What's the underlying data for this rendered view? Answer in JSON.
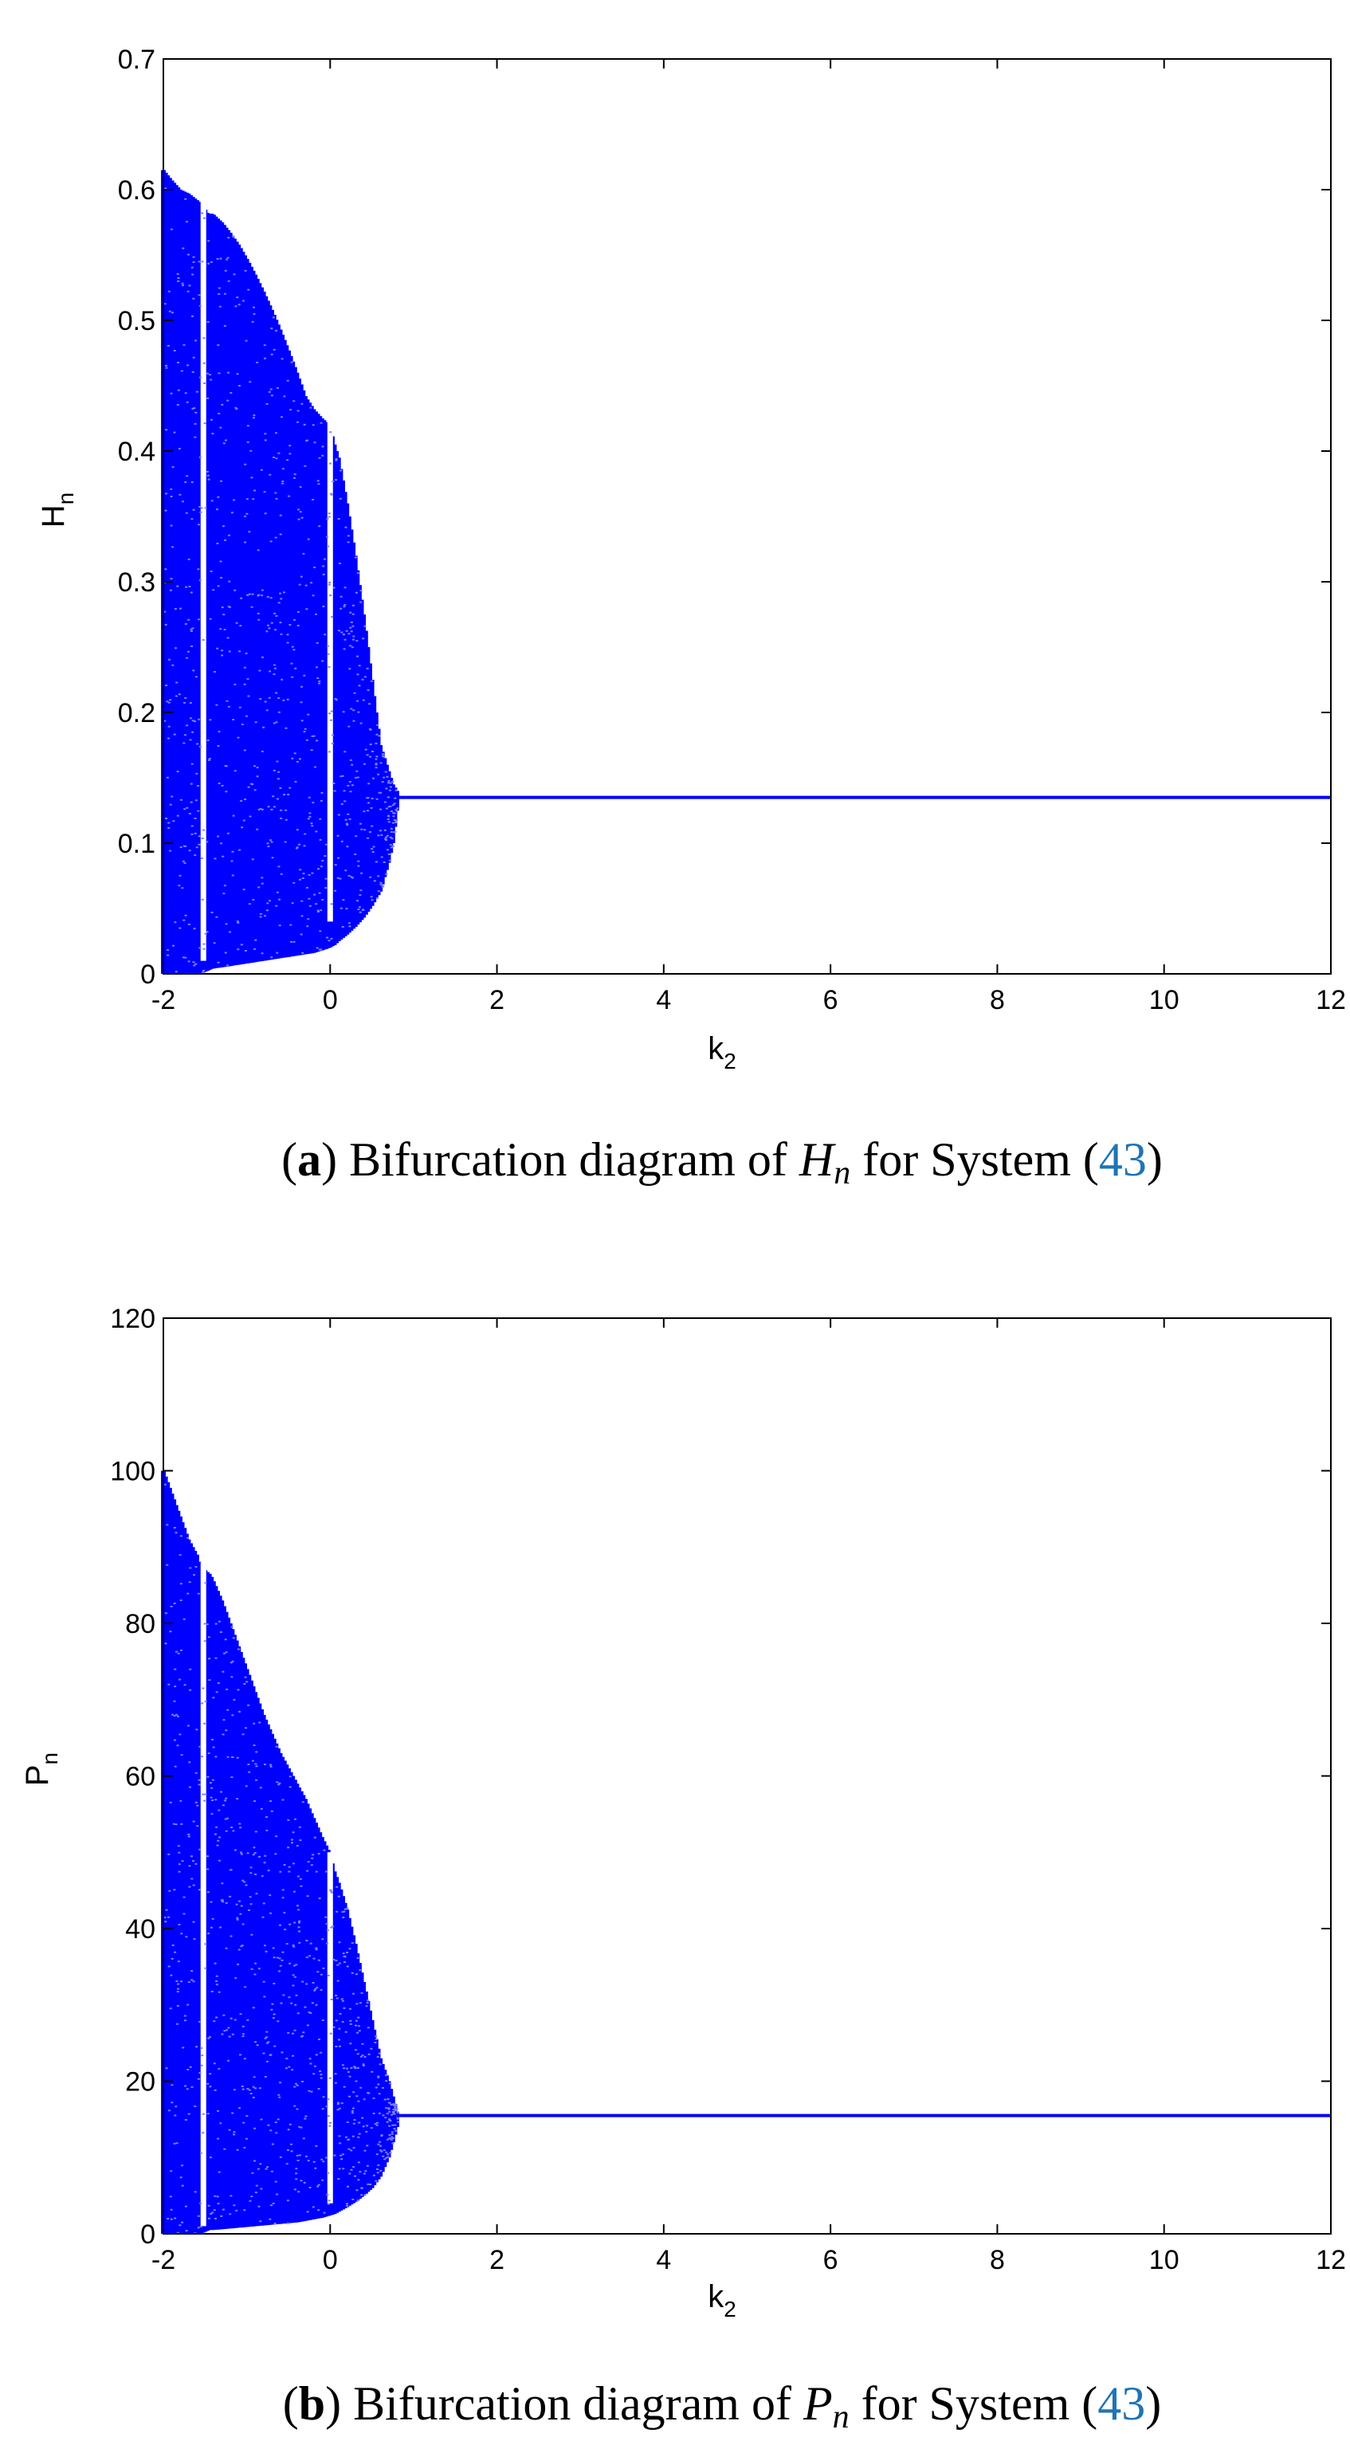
{
  "chart_data": [
    {
      "type": "scatter",
      "panel": "a",
      "xlabel": "k",
      "xlabel_sub": "2",
      "ylabel": "H",
      "ylabel_sub": "n",
      "xlim": [
        -2,
        12
      ],
      "ylim": [
        0,
        0.7
      ],
      "xticks": [
        "-2",
        "0",
        "2",
        "4",
        "6",
        "8",
        "10",
        "12"
      ],
      "yticks": [
        "0",
        "0.1",
        "0.2",
        "0.3",
        "0.4",
        "0.5",
        "0.6",
        "0.7"
      ],
      "series_color": "#0000ff",
      "chaotic_envelope": {
        "k": [
          -2.0,
          -1.9,
          -1.8,
          -1.7,
          -1.6,
          -1.56,
          -1.45,
          -1.42,
          -1.3,
          -1.2,
          -1.1,
          -1.0,
          -0.9,
          -0.8,
          -0.7,
          -0.6,
          -0.5,
          -0.4,
          -0.3,
          -0.2,
          -0.1,
          -0.01,
          0.05,
          0.1,
          0.2,
          0.3,
          0.4,
          0.5,
          0.6,
          0.7,
          0.75,
          0.8
        ],
        "upper": [
          0.615,
          0.607,
          0.6,
          0.597,
          0.592,
          0.59,
          0.58,
          0.582,
          0.575,
          0.567,
          0.558,
          0.547,
          0.535,
          0.522,
          0.508,
          0.493,
          0.477,
          0.46,
          0.442,
          0.432,
          0.425,
          0.42,
          0.405,
          0.395,
          0.36,
          0.32,
          0.275,
          0.225,
          0.175,
          0.155,
          0.145,
          0.14
        ],
        "lower": [
          0.0,
          0.0,
          0.0,
          0.0,
          0.0,
          0.0,
          0.003,
          0.004,
          0.005,
          0.006,
          0.007,
          0.008,
          0.009,
          0.01,
          0.011,
          0.012,
          0.013,
          0.014,
          0.015,
          0.016,
          0.018,
          0.02,
          0.022,
          0.025,
          0.03,
          0.036,
          0.043,
          0.052,
          0.063,
          0.085,
          0.1,
          0.125
        ]
      },
      "gaps": [
        {
          "k": -1.52,
          "from": 0.01,
          "to": 0.6
        },
        {
          "k": 0.0,
          "from": 0.04,
          "to": 0.43
        }
      ],
      "fixed_point": {
        "k_from": 0.8,
        "k_to": 12,
        "value": 0.135
      },
      "caption": {
        "open": "(",
        "letter": "a",
        "text": ") Bifurcation diagram of ",
        "var": "H",
        "var_sub": "n",
        "text2": " for System (",
        "ref": "43",
        "close": ")"
      }
    },
    {
      "type": "scatter",
      "panel": "b",
      "xlabel": "k",
      "xlabel_sub": "2",
      "ylabel": "P",
      "ylabel_sub": "n",
      "xlim": [
        -2,
        12
      ],
      "ylim": [
        0,
        120
      ],
      "xticks": [
        "-2",
        "0",
        "2",
        "4",
        "6",
        "8",
        "10",
        "12"
      ],
      "yticks": [
        "0",
        "20",
        "40",
        "60",
        "80",
        "100",
        "120"
      ],
      "series_color": "#0000ff",
      "chaotic_envelope": {
        "k": [
          -2.0,
          -1.9,
          -1.8,
          -1.7,
          -1.6,
          -1.56,
          -1.45,
          -1.42,
          -1.3,
          -1.2,
          -1.1,
          -1.0,
          -0.9,
          -0.8,
          -0.7,
          -0.6,
          -0.5,
          -0.4,
          -0.3,
          -0.2,
          -0.1,
          -0.01,
          0.05,
          0.1,
          0.2,
          0.3,
          0.4,
          0.5,
          0.6,
          0.7,
          0.75,
          0.8
        ],
        "upper": [
          100,
          97,
          94,
          91,
          89,
          87.5,
          86.5,
          86,
          83,
          80,
          77,
          74,
          71,
          68,
          65.5,
          63,
          61,
          59,
          57,
          54.5,
          52,
          50,
          47.5,
          46,
          42.5,
          38,
          33,
          28,
          23,
          20,
          18,
          16
        ],
        "lower": [
          0,
          0,
          0,
          0,
          0,
          0,
          0.5,
          0.5,
          0.6,
          0.7,
          0.8,
          0.9,
          1.0,
          1.1,
          1.2,
          1.3,
          1.4,
          1.5,
          1.7,
          1.9,
          2.1,
          2.4,
          2.6,
          2.9,
          3.5,
          4.2,
          5.0,
          6.0,
          7.5,
          10,
          12,
          14
        ]
      },
      "gaps": [
        {
          "k": -1.52,
          "from": 1,
          "to": 88
        },
        {
          "k": 0.0,
          "from": 4,
          "to": 50
        }
      ],
      "fixed_point": {
        "k_from": 0.8,
        "k_to": 12,
        "value": 15.5
      },
      "caption": {
        "open": "(",
        "letter": "b",
        "text": ") Bifurcation diagram of ",
        "var": "P",
        "var_sub": "n",
        "text2": " for System (",
        "ref": "43",
        "close": ")"
      }
    }
  ]
}
